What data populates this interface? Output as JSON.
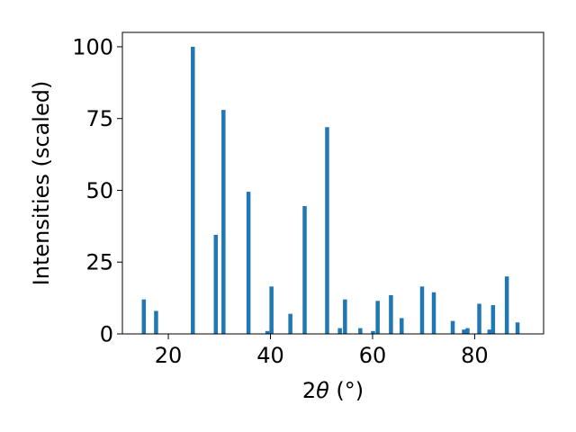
{
  "chart_data": {
    "type": "bar",
    "title": "",
    "xlabel_parts": {
      "number": "2",
      "theta": "θ",
      "unit": " (°)"
    },
    "ylabel": "Intensities (scaled)",
    "xlim": [
      11.0,
      93.5
    ],
    "ylim": [
      0,
      105
    ],
    "xticks": [
      20,
      40,
      60,
      80
    ],
    "yticks": [
      0,
      25,
      50,
      75,
      100
    ],
    "bar_color": "#1f77b4",
    "grid": false,
    "legend": "none",
    "x": [
      15.2,
      17.6,
      24.8,
      29.3,
      30.8,
      35.7,
      39.4,
      40.2,
      43.9,
      46.7,
      51.1,
      53.6,
      54.6,
      57.6,
      60.1,
      61.0,
      63.6,
      65.7,
      69.7,
      72.0,
      75.7,
      77.9,
      78.6,
      80.9,
      82.9,
      83.6,
      86.3,
      88.4
    ],
    "values": [
      12,
      8,
      100,
      34.5,
      78,
      49.5,
      1,
      16.5,
      7,
      44.5,
      72,
      2,
      12,
      2,
      1,
      11.5,
      13.5,
      5.5,
      16.5,
      14.5,
      4.5,
      1.5,
      2,
      10.5,
      1.5,
      10,
      20,
      4
    ]
  }
}
